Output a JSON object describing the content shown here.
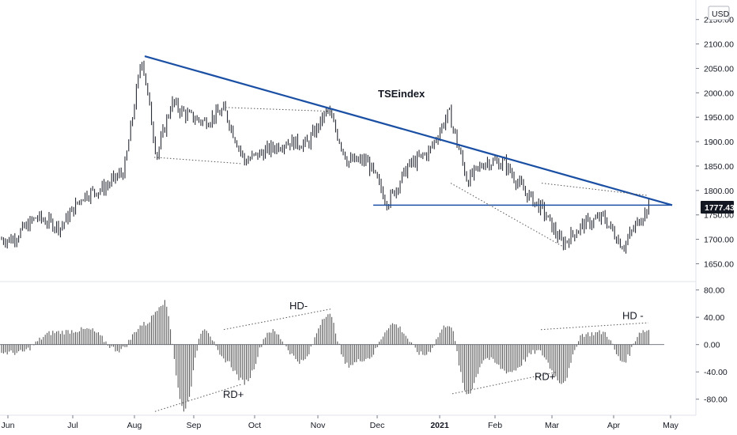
{
  "chart_data": [
    {
      "type": "line",
      "subtype": "candlestick",
      "title": "TSEindex",
      "currency": "USD",
      "last_price": "1777.43",
      "ylim": [
        1620,
        2190
      ],
      "y_ticks": [
        "2150.00",
        "2100.00",
        "2050.00",
        "2000.00",
        "1950.00",
        "1900.00",
        "1850.00",
        "1800.00",
        "1750.00",
        "1700.00",
        "1650.00"
      ],
      "x_ticks": [
        "Jun",
        "Jul",
        "Aug",
        "Sep",
        "Oct",
        "Nov",
        "Dec",
        "2021",
        "Feb",
        "Mar",
        "Apr",
        "May"
      ],
      "series": [
        {
          "x": [
            "Jun",
            "Jun",
            "Jun",
            "Jul",
            "Jul",
            "Jul",
            "Aug",
            "Aug",
            "Aug",
            "Aug",
            "Sep",
            "Sep",
            "Sep",
            "Oct",
            "Oct",
            "Oct",
            "Nov",
            "Nov",
            "Nov",
            "Dec",
            "Dec",
            "Dec",
            "2021",
            "2021",
            "2021",
            "Feb",
            "Feb",
            "Feb",
            "Mar",
            "Mar",
            "Mar",
            "Apr",
            "Apr",
            "Apr"
          ],
          "values": [
            1700,
            1745,
            1725,
            1790,
            1805,
            1840,
            2075,
            1870,
            1980,
            1955,
            1940,
            1965,
            1860,
            1880,
            1900,
            1895,
            1965,
            1860,
            1860,
            1775,
            1850,
            1880,
            1960,
            1820,
            1860,
            1855,
            1800,
            1760,
            1690,
            1730,
            1745,
            1685,
            1750,
            1790
          ]
        }
      ],
      "annotations": [
        {
          "type": "trendline",
          "from": [
            "Aug",
            2075
          ],
          "to": [
            "May",
            1770
          ],
          "style": "solid-blue"
        },
        {
          "type": "hline",
          "y": 1770,
          "from": "Dec",
          "to": "May",
          "style": "solid-blue"
        },
        {
          "type": "trendline",
          "from": [
            "Aug",
            1868
          ],
          "to": [
            "Sep",
            1855
          ],
          "style": "dotted"
        },
        {
          "type": "trendline",
          "from": [
            "Sep",
            1970
          ],
          "to": [
            "Nov",
            1962
          ],
          "style": "dotted"
        },
        {
          "type": "trendline",
          "from": [
            "2021",
            1815
          ],
          "to": [
            "Mar",
            1685
          ],
          "style": "dotted"
        },
        {
          "type": "trendline",
          "from": [
            "Mar",
            1815
          ],
          "to": [
            "Apr",
            1790
          ],
          "style": "dotted"
        }
      ]
    },
    {
      "type": "bar",
      "ylim": [
        -100,
        90
      ],
      "y_ticks": [
        "80.00",
        "40.00",
        "0.00",
        "-40.00",
        "-80.00"
      ],
      "x": [
        "Jun",
        "Jun",
        "Jul",
        "Jul",
        "Aug",
        "Aug",
        "Aug",
        "Sep",
        "Sep",
        "Sep",
        "Oct",
        "Oct",
        "Nov",
        "Nov",
        "Nov",
        "Dec",
        "Dec",
        "2021",
        "2021",
        "2021",
        "Feb",
        "Feb",
        "Mar",
        "Mar",
        "Mar",
        "Apr",
        "Apr",
        "Apr"
      ],
      "values": [
        -12,
        18,
        22,
        -8,
        30,
        62,
        -95,
        25,
        -22,
        -55,
        20,
        -25,
        45,
        -30,
        -20,
        30,
        -15,
        30,
        -72,
        -20,
        -40,
        -10,
        -55,
        15,
        18,
        -25,
        20,
        25
      ],
      "annotations": [
        {
          "label": "HD-",
          "style": "dotted"
        },
        {
          "label": "RD+",
          "style": "dotted"
        },
        {
          "label": "RD+",
          "style": "dotted"
        },
        {
          "label": "HD -",
          "style": "dotted"
        }
      ]
    }
  ]
}
